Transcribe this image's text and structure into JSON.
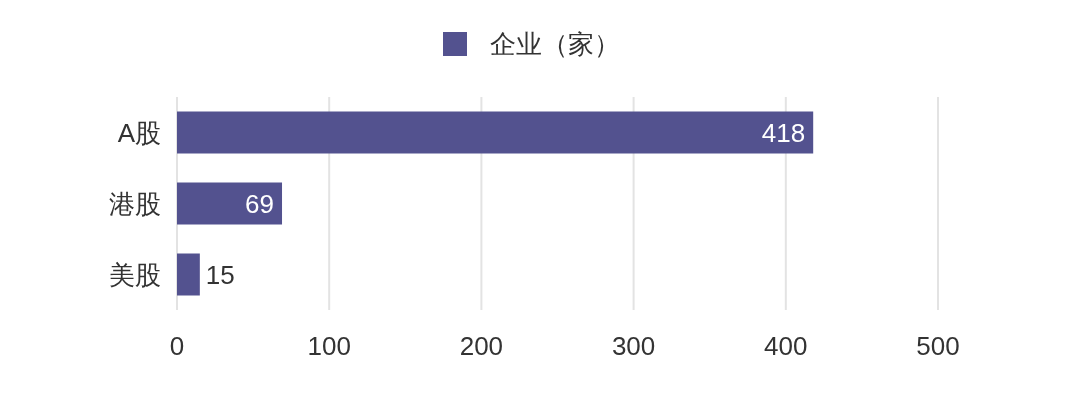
{
  "chart_data": {
    "type": "bar",
    "orientation": "horizontal",
    "categories": [
      "A股",
      "港股",
      "美股"
    ],
    "series": [
      {
        "name": "企业（家）",
        "color": "#53528f",
        "values": [
          418,
          69,
          15
        ]
      }
    ],
    "xlim": [
      0,
      500
    ],
    "xticks": [
      0,
      100,
      200,
      300,
      400,
      500
    ],
    "grid": "x",
    "legend": "top",
    "data_labels": true
  }
}
